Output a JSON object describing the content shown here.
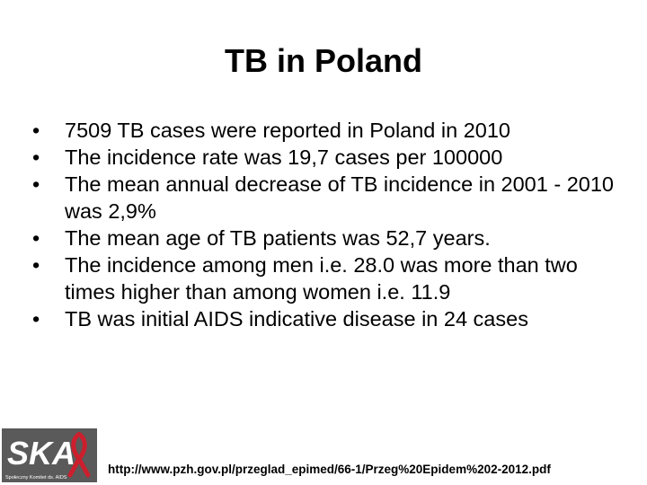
{
  "slide": {
    "title": "TB in Poland",
    "bullets": [
      "7509 TB cases were reported in Poland in 2010",
      "The incidence rate was 19,7 cases per 100000",
      "The mean annual decrease of TB incidence in 2001 - 2010 was 2,9%",
      "The mean age of TB patients was 52,7 years.",
      "The incidence among men i.e. 28.0 was more than two times higher than among women i.e. 11.9",
      "TB was initial AIDS indicative disease in 24 cases"
    ],
    "bullet_symbol": "•",
    "logo": {
      "text": "SKA",
      "subtitle": "Społeczny Komitet ds. AIDS",
      "ribbon_color": "#cc1f2d"
    },
    "source": "http://www.pzh.gov.pl/przeglad_epimed/66-1/Przeg%20Epidem%202-2012.pdf"
  }
}
